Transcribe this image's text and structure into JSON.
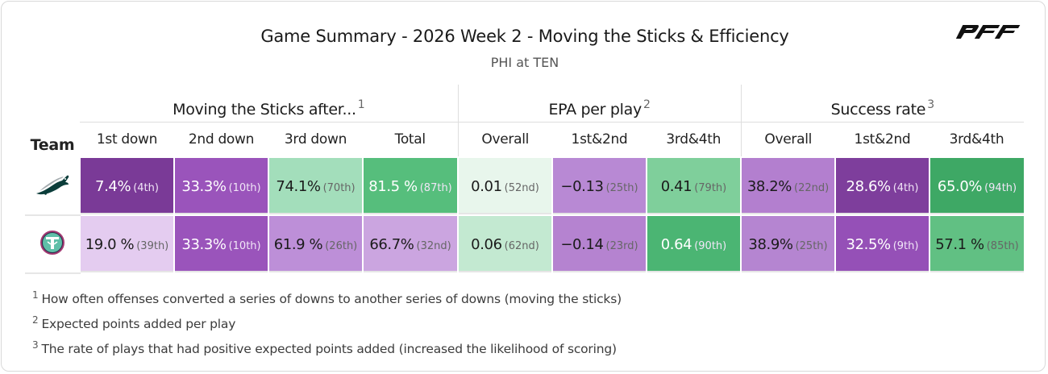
{
  "title": "Game Summary - 2026 Week 2 - Moving the Sticks & Efficiency",
  "subtitle": "PHI at TEN",
  "brand": {
    "logo_text": "PFF"
  },
  "groups": [
    {
      "label": "Moving the Sticks after...",
      "note": "1"
    },
    {
      "label": "EPA per play",
      "note": "2"
    },
    {
      "label": "Success rate",
      "note": "3"
    }
  ],
  "columns": {
    "team": "Team",
    "moving": [
      "1st down",
      "2nd down",
      "3rd down",
      "Total"
    ],
    "epa": [
      "Overall",
      "1st&2nd",
      "3rd&4th"
    ],
    "success": [
      "Overall",
      "1st&2nd",
      "3rd&4th"
    ]
  },
  "rows": [
    {
      "team_icon": "eagles-logo-icon",
      "cells": [
        {
          "value": "7.4%",
          "rank": "(4th)",
          "bg": "#7a3a97",
          "light": true
        },
        {
          "value": "33.3%",
          "rank": "(10th)",
          "bg": "#9a54bb",
          "light": true
        },
        {
          "value": "74.1%",
          "rank": "(70th)",
          "bg": "#a3debb",
          "light": false
        },
        {
          "value": "81.5 %",
          "rank": "(87th)",
          "bg": "#56be7c",
          "light": true
        },
        {
          "value": "0.01",
          "rank": "(52nd)",
          "bg": "#e8f6ec",
          "light": false
        },
        {
          "value": "−0.13",
          "rank": "(25th)",
          "bg": "#b889d4",
          "light": false
        },
        {
          "value": "0.41",
          "rank": "(79th)",
          "bg": "#7fcf9b",
          "light": false
        },
        {
          "value": "38.2%",
          "rank": "(22nd)",
          "bg": "#b37fcf",
          "light": false
        },
        {
          "value": "28.6%",
          "rank": "(4th)",
          "bg": "#7e3e9c",
          "light": true
        },
        {
          "value": "65.0%",
          "rank": "(94th)",
          "bg": "#3ea865",
          "light": true
        }
      ]
    },
    {
      "team_icon": "titans-logo-icon",
      "cells": [
        {
          "value": "19.0 %",
          "rank": "(39th)",
          "bg": "#e4ccf0",
          "light": false
        },
        {
          "value": "33.3%",
          "rank": "(10th)",
          "bg": "#9a54bb",
          "light": true
        },
        {
          "value": "61.9 %",
          "rank": "(26th)",
          "bg": "#bd8fd8",
          "light": false
        },
        {
          "value": "66.7%",
          "rank": "(32nd)",
          "bg": "#cba5e0",
          "light": false
        },
        {
          "value": "0.06",
          "rank": "(62nd)",
          "bg": "#c3e9d1",
          "light": false
        },
        {
          "value": "−0.14",
          "rank": "(23rd)",
          "bg": "#b583d0",
          "light": false
        },
        {
          "value": "0.64",
          "rank": "(90th)",
          "bg": "#4bb573",
          "light": true
        },
        {
          "value": "38.9%",
          "rank": "(25th)",
          "bg": "#b585d1",
          "light": false
        },
        {
          "value": "32.5%",
          "rank": "(9th)",
          "bg": "#9550b7",
          "light": true
        },
        {
          "value": "57.1 %",
          "rank": "(85th)",
          "bg": "#61c083",
          "light": false
        }
      ]
    }
  ],
  "footnotes": [
    {
      "num": "1",
      "text": "How often offenses converted a series of downs to another series of downs (moving the sticks)"
    },
    {
      "num": "2",
      "text": "Expected points added per play"
    },
    {
      "num": "3",
      "text": "The rate of plays that had positive expected points added (increased the likelihood of scoring)"
    }
  ]
}
